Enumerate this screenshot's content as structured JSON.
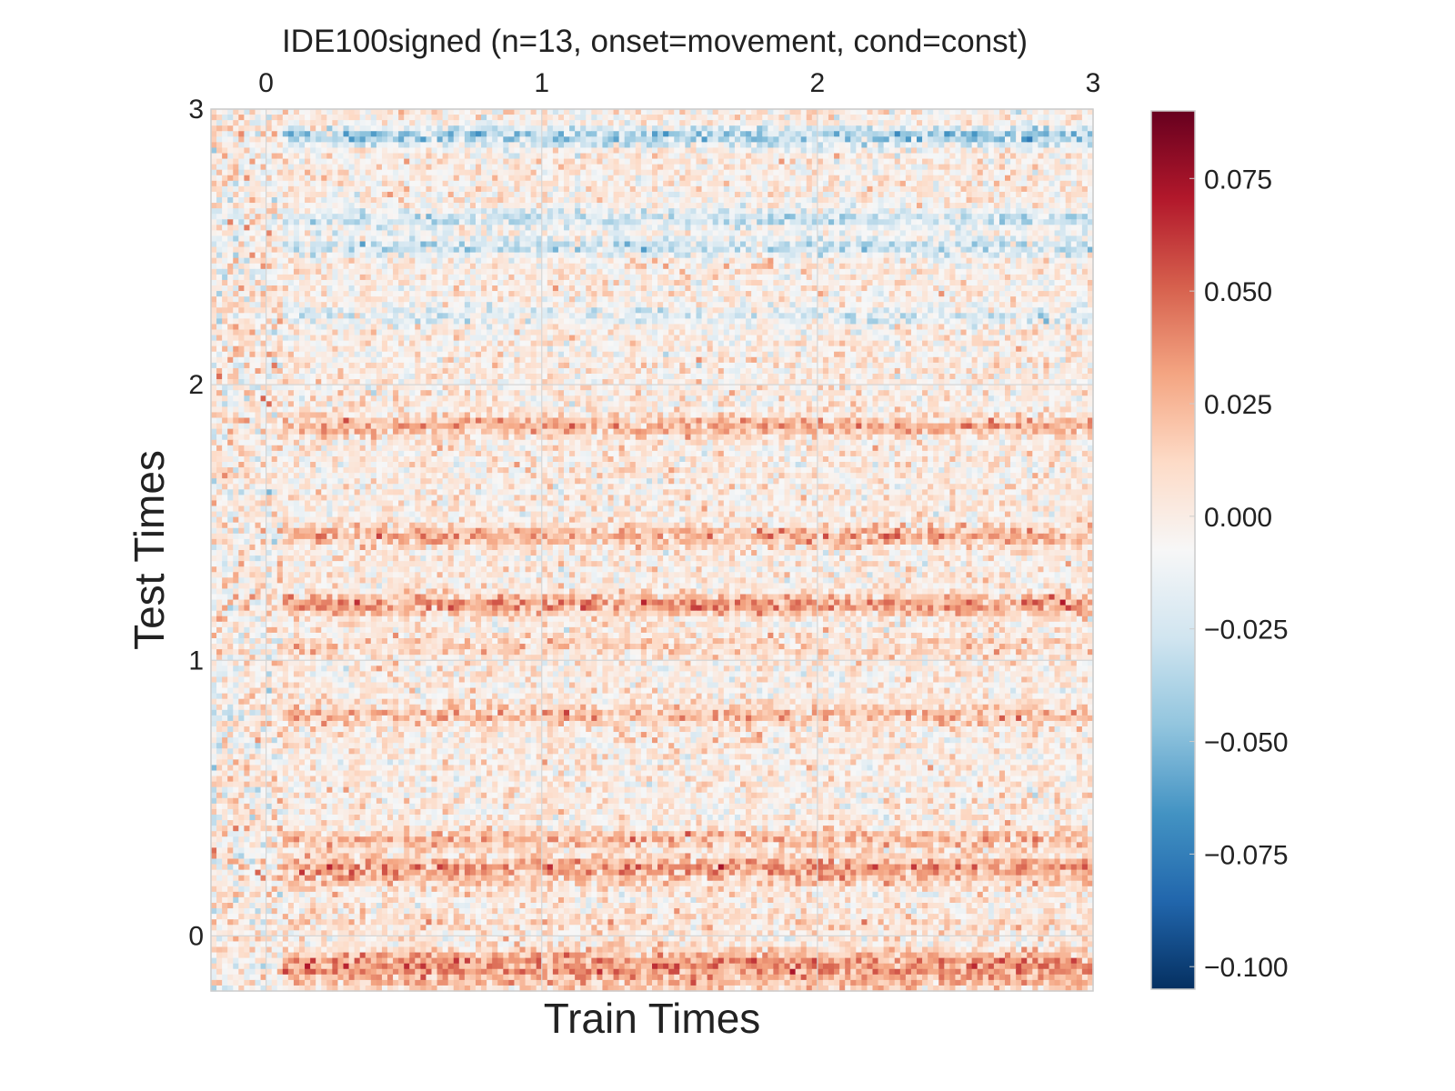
{
  "chart_data": {
    "type": "heatmap",
    "title": "IDE100signed (n=13, onset=movement, cond=const)",
    "xlabel": "Train Times",
    "ylabel": "Test Times",
    "x_range": [
      -0.2,
      3.0
    ],
    "y_range": [
      -0.2,
      3.0
    ],
    "x_ticks": [
      0,
      1,
      2,
      3
    ],
    "y_ticks": [
      0,
      1,
      2,
      3
    ],
    "x_tick_labels": [
      "0",
      "1",
      "2",
      "3"
    ],
    "y_tick_labels": [
      "0",
      "1",
      "2",
      "3"
    ],
    "x_axis_position": "top",
    "grid": true,
    "colormap": "RdBu_r",
    "colorbar": {
      "min": -0.105,
      "max": 0.09,
      "ticks": [
        0.075,
        0.05,
        0.025,
        0.0,
        -0.025,
        -0.05,
        -0.075,
        -0.1
      ],
      "tick_labels": [
        "0.075",
        "0.050",
        "0.025",
        "0.000",
        "−0.025",
        "−0.050",
        "−0.075",
        "−0.100"
      ],
      "position": "right"
    },
    "grid_size": [
      160,
      160
    ],
    "row_profile": [
      {
        "y": -0.17,
        "value": 0.02
      },
      {
        "y": -0.12,
        "value": 0.03
      },
      {
        "y": -0.08,
        "value": 0.025
      },
      {
        "y": 0.05,
        "value": 0.01
      },
      {
        "y": 0.2,
        "value": 0.015
      },
      {
        "y": 0.25,
        "value": 0.035
      },
      {
        "y": 0.35,
        "value": 0.025
      },
      {
        "y": 0.8,
        "value": 0.025
      },
      {
        "y": 1.05,
        "value": 0.015
      },
      {
        "y": 1.2,
        "value": 0.04
      },
      {
        "y": 1.45,
        "value": 0.03
      },
      {
        "y": 1.85,
        "value": 0.03
      },
      {
        "y": 2.25,
        "value": -0.02
      },
      {
        "y": 2.5,
        "value": -0.03
      },
      {
        "y": 2.6,
        "value": -0.03
      },
      {
        "y": 2.9,
        "value": -0.045
      }
    ]
  }
}
